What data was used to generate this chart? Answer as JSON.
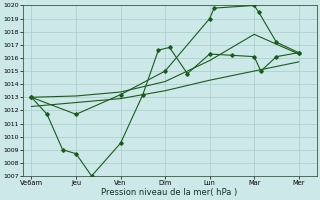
{
  "background_color": "#cce8e8",
  "grid_color": "#aacccc",
  "line_color": "#1a5c1a",
  "ylabel": "Pression niveau de la mer( hPa )",
  "ylim": [
    1007,
    1020
  ],
  "yticks": [
    1007,
    1008,
    1009,
    1010,
    1011,
    1012,
    1013,
    1014,
    1015,
    1016,
    1017,
    1018,
    1019,
    1020
  ],
  "x_tick_positions": [
    0,
    1,
    2,
    3,
    4,
    5,
    6
  ],
  "x_labels": [
    "Ve6am",
    "Jeu",
    "Ven",
    "Dim",
    "Lun",
    "Mar",
    "Mer"
  ],
  "line1_x": [
    0,
    0.35,
    0.7,
    1.0,
    1.35,
    2.0,
    2.5,
    2.85,
    3.1,
    3.5,
    4.0,
    4.5,
    5.0,
    5.15,
    5.5,
    6.0
  ],
  "line1_y": [
    1013.0,
    1011.7,
    1009.0,
    1008.7,
    1007.0,
    1009.5,
    1013.2,
    1016.6,
    1016.8,
    1014.8,
    1016.3,
    1016.2,
    1016.1,
    1015.0,
    1016.1,
    1016.4
  ],
  "line2_x": [
    0,
    1.0,
    2.0,
    3.0,
    4.0,
    4.1,
    5.0,
    5.1,
    5.5,
    6.0
  ],
  "line2_y": [
    1013.0,
    1011.7,
    1013.2,
    1015.0,
    1019.0,
    1019.8,
    1020.0,
    1019.5,
    1017.2,
    1016.4
  ],
  "line3_x": [
    0,
    1.0,
    2.0,
    3.0,
    4.0,
    5.0,
    6.0
  ],
  "line3_y": [
    1012.3,
    1012.6,
    1012.9,
    1013.5,
    1014.3,
    1015.0,
    1015.7
  ],
  "line4_x": [
    0,
    1.0,
    2.0,
    3.0,
    4.0,
    5.0,
    6.0
  ],
  "line4_y": [
    1013.0,
    1013.1,
    1013.4,
    1014.2,
    1015.8,
    1017.8,
    1016.3
  ]
}
